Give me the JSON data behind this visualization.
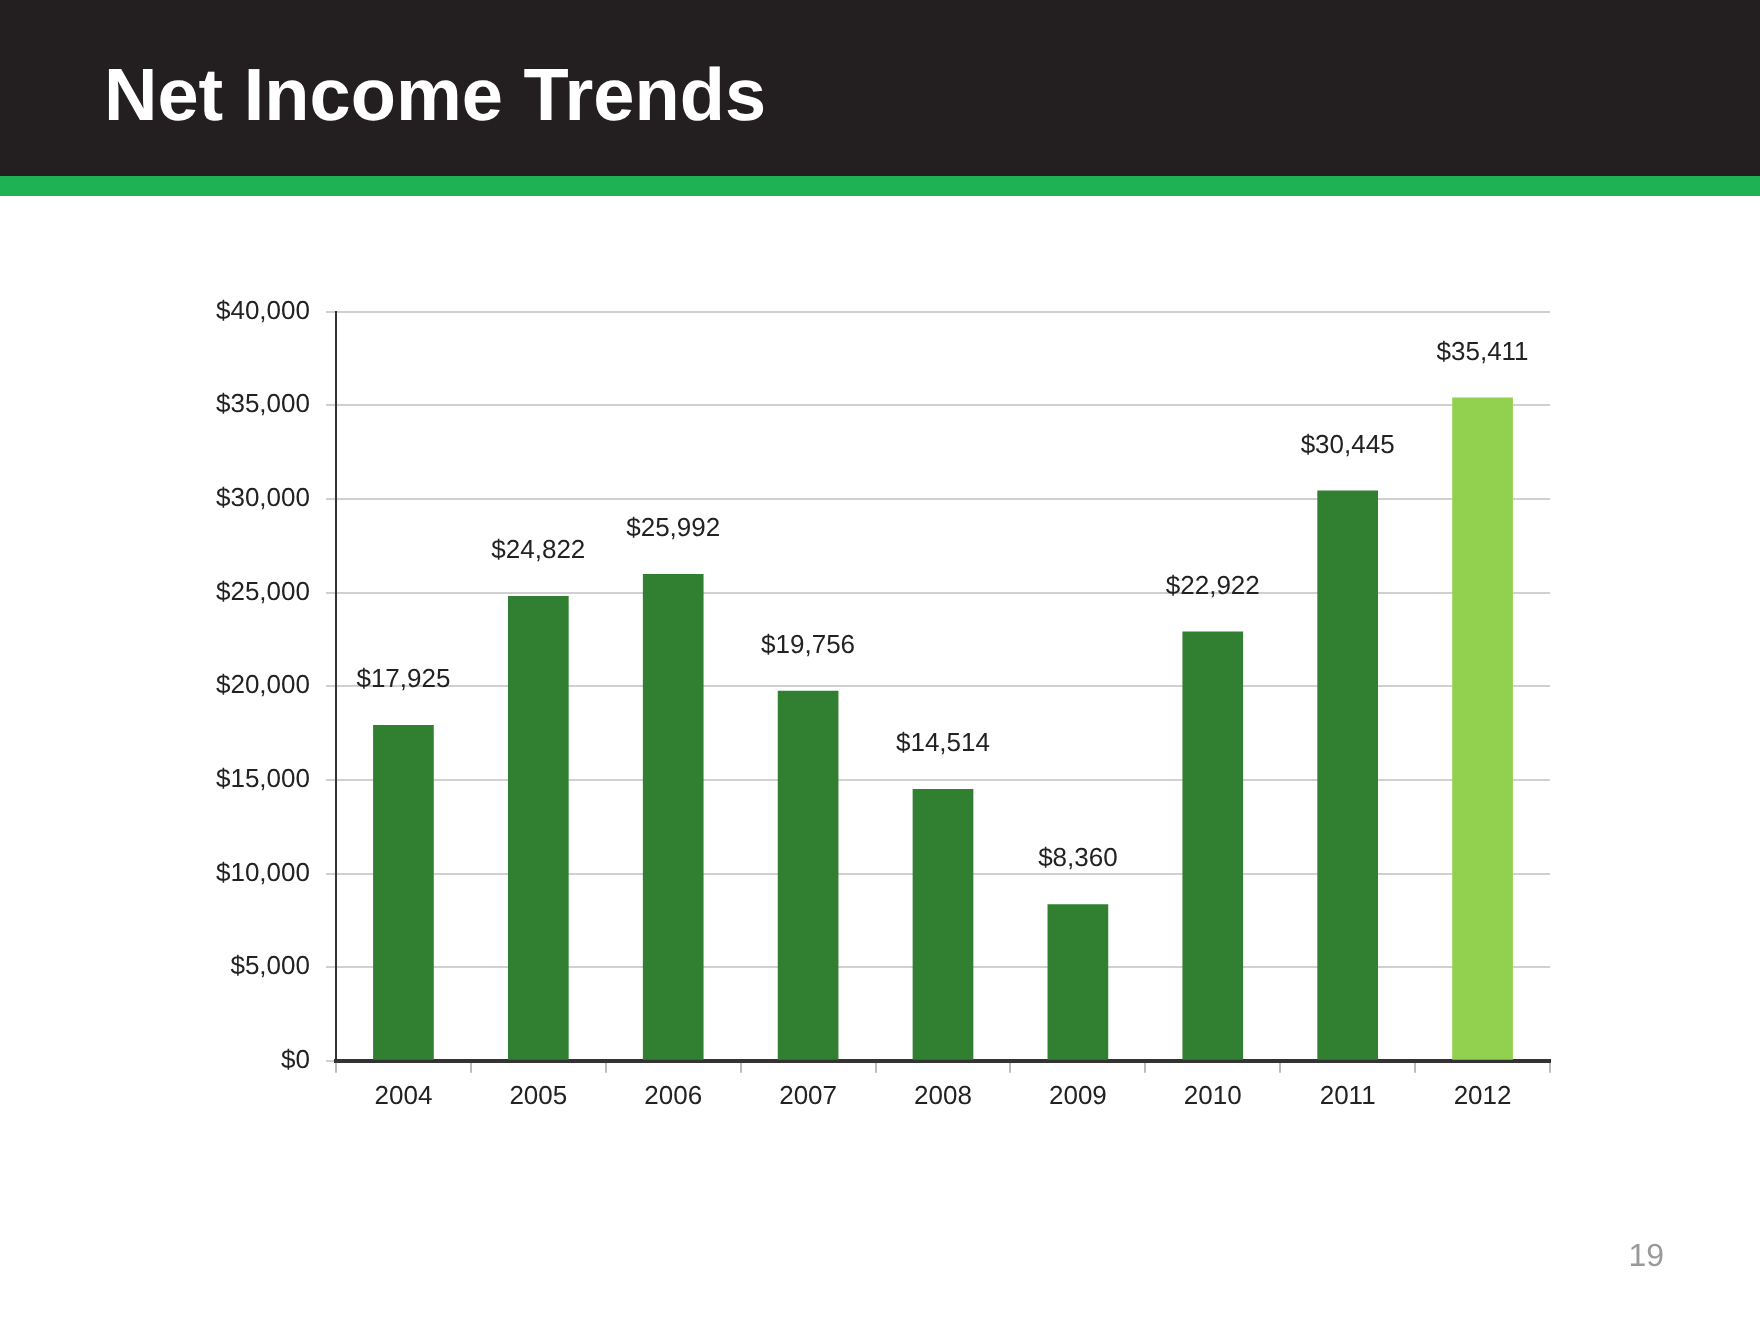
{
  "chart_data": {
    "type": "bar",
    "title": "Net Income Trends",
    "categories": [
      "2004",
      "2005",
      "2006",
      "2007",
      "2008",
      "2009",
      "2010",
      "2011",
      "2012"
    ],
    "values": [
      17925,
      24822,
      25992,
      19756,
      14514,
      8360,
      22922,
      30445,
      35411
    ],
    "colors": [
      "#318032",
      "#318032",
      "#318032",
      "#318032",
      "#318032",
      "#318032",
      "#318032",
      "#318032",
      "#92d050"
    ],
    "value_labels": [
      "$17,925",
      "$24,822",
      "$25,992",
      "$19,756",
      "$14,514",
      "$8,360",
      "$22,922",
      "$30,445",
      "$35,411"
    ],
    "ylim": [
      0,
      40000
    ],
    "yticks": [
      {
        "value": 0,
        "label": "$0"
      },
      {
        "value": 5000,
        "label": "$5,000"
      },
      {
        "value": 10000,
        "label": "$10,000"
      },
      {
        "value": 15000,
        "label": "$15,000"
      },
      {
        "value": 20000,
        "label": "$20,000"
      },
      {
        "value": 25000,
        "label": "$25,000"
      },
      {
        "value": 30000,
        "label": "$30,000"
      },
      {
        "value": 35000,
        "label": "$35,000"
      },
      {
        "value": 40000,
        "label": "$40,000"
      }
    ],
    "grid": "y",
    "annotations": [
      "19"
    ]
  }
}
